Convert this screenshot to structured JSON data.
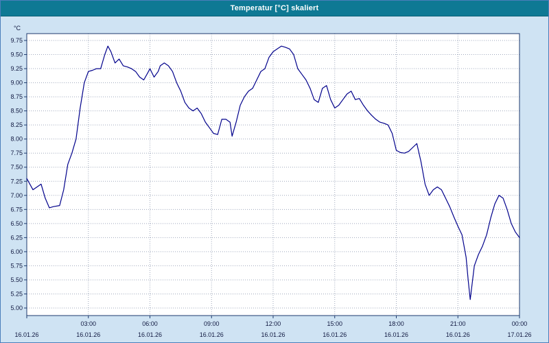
{
  "window": {
    "title": "Temperatur [°C] skaliert"
  },
  "colors": {
    "titlebar": "#0e7994",
    "frame_background": "#cfe3f3",
    "plot_background": "#ffffff",
    "plot_border": "#1d3a6e",
    "grid": "#9fa8bc",
    "line": "#00008b",
    "axis_text": "#101840"
  },
  "chart_data": {
    "type": "line",
    "title": "Temperatur [°C] skaliert",
    "ylabel": "°C",
    "xlabel": "",
    "ylim": [
      5.0,
      9.75
    ],
    "ytick_step": 0.25,
    "xlim": [
      0,
      24
    ],
    "grid": true,
    "legend": "none",
    "y_tick_labels": [
      "9.75",
      "9.50",
      "9.25",
      "9.00",
      "8.75",
      "8.50",
      "8.25",
      "8.00",
      "7.75",
      "7.50",
      "7.25",
      "7.00",
      "6.75",
      "6.50",
      "6.25",
      "6.00",
      "5.75",
      "5.50",
      "5.25",
      "5.00"
    ],
    "x_ticks": [
      {
        "hour": 0,
        "time": "",
        "date": "16.01.26"
      },
      {
        "hour": 3,
        "time": "03:00",
        "date": "16.01.26"
      },
      {
        "hour": 6,
        "time": "06:00",
        "date": "16.01.26"
      },
      {
        "hour": 9,
        "time": "09:00",
        "date": "16.01.26"
      },
      {
        "hour": 12,
        "time": "12:00",
        "date": "16.01.26"
      },
      {
        "hour": 15,
        "time": "15:00",
        "date": "16.01.26"
      },
      {
        "hour": 18,
        "time": "18:00",
        "date": "16.01.26"
      },
      {
        "hour": 21,
        "time": "21:00",
        "date": "16.01.26"
      },
      {
        "hour": 24,
        "time": "00:00",
        "date": "17.01.26"
      }
    ],
    "series": [
      {
        "name": "Temperatur",
        "color": "#00008b",
        "points": [
          [
            0,
            7.3
          ],
          [
            0.3,
            7.1
          ],
          [
            0.5,
            7.15
          ],
          [
            0.7,
            7.2
          ],
          [
            0.9,
            6.95
          ],
          [
            1.1,
            6.78
          ],
          [
            1.3,
            6.8
          ],
          [
            1.6,
            6.82
          ],
          [
            1.8,
            7.1
          ],
          [
            2.0,
            7.55
          ],
          [
            2.2,
            7.75
          ],
          [
            2.4,
            8.0
          ],
          [
            2.6,
            8.55
          ],
          [
            2.8,
            9.0
          ],
          [
            3.0,
            9.2
          ],
          [
            3.2,
            9.22
          ],
          [
            3.4,
            9.25
          ],
          [
            3.6,
            9.25
          ],
          [
            3.8,
            9.5
          ],
          [
            3.95,
            9.65
          ],
          [
            4.1,
            9.55
          ],
          [
            4.3,
            9.35
          ],
          [
            4.5,
            9.42
          ],
          [
            4.7,
            9.3
          ],
          [
            4.9,
            9.28
          ],
          [
            5.1,
            9.25
          ],
          [
            5.3,
            9.2
          ],
          [
            5.5,
            9.1
          ],
          [
            5.7,
            9.05
          ],
          [
            5.9,
            9.18
          ],
          [
            6.0,
            9.25
          ],
          [
            6.2,
            9.1
          ],
          [
            6.4,
            9.2
          ],
          [
            6.5,
            9.3
          ],
          [
            6.7,
            9.35
          ],
          [
            6.9,
            9.3
          ],
          [
            7.1,
            9.2
          ],
          [
            7.3,
            9.0
          ],
          [
            7.5,
            8.85
          ],
          [
            7.7,
            8.65
          ],
          [
            7.9,
            8.55
          ],
          [
            8.1,
            8.5
          ],
          [
            8.3,
            8.55
          ],
          [
            8.5,
            8.45
          ],
          [
            8.7,
            8.3
          ],
          [
            8.9,
            8.2
          ],
          [
            9.1,
            8.1
          ],
          [
            9.3,
            8.08
          ],
          [
            9.5,
            8.35
          ],
          [
            9.7,
            8.35
          ],
          [
            9.9,
            8.3
          ],
          [
            10.0,
            8.05
          ],
          [
            10.2,
            8.3
          ],
          [
            10.4,
            8.6
          ],
          [
            10.6,
            8.75
          ],
          [
            10.8,
            8.85
          ],
          [
            11.0,
            8.9
          ],
          [
            11.2,
            9.05
          ],
          [
            11.4,
            9.2
          ],
          [
            11.6,
            9.25
          ],
          [
            11.8,
            9.45
          ],
          [
            12.0,
            9.55
          ],
          [
            12.2,
            9.6
          ],
          [
            12.4,
            9.65
          ],
          [
            12.6,
            9.63
          ],
          [
            12.8,
            9.6
          ],
          [
            13.0,
            9.5
          ],
          [
            13.2,
            9.25
          ],
          [
            13.4,
            9.15
          ],
          [
            13.6,
            9.05
          ],
          [
            13.8,
            8.9
          ],
          [
            14.0,
            8.7
          ],
          [
            14.2,
            8.65
          ],
          [
            14.4,
            8.9
          ],
          [
            14.6,
            8.95
          ],
          [
            14.8,
            8.7
          ],
          [
            15.0,
            8.55
          ],
          [
            15.2,
            8.6
          ],
          [
            15.4,
            8.7
          ],
          [
            15.6,
            8.8
          ],
          [
            15.8,
            8.85
          ],
          [
            16.0,
            8.7
          ],
          [
            16.2,
            8.72
          ],
          [
            16.4,
            8.6
          ],
          [
            16.6,
            8.5
          ],
          [
            16.8,
            8.42
          ],
          [
            17.0,
            8.35
          ],
          [
            17.2,
            8.3
          ],
          [
            17.4,
            8.28
          ],
          [
            17.6,
            8.25
          ],
          [
            17.8,
            8.1
          ],
          [
            18.0,
            7.8
          ],
          [
            18.2,
            7.76
          ],
          [
            18.4,
            7.75
          ],
          [
            18.6,
            7.78
          ],
          [
            18.8,
            7.85
          ],
          [
            19.0,
            7.92
          ],
          [
            19.2,
            7.6
          ],
          [
            19.4,
            7.2
          ],
          [
            19.6,
            7.0
          ],
          [
            19.8,
            7.1
          ],
          [
            20.0,
            7.15
          ],
          [
            20.2,
            7.1
          ],
          [
            20.4,
            6.95
          ],
          [
            20.6,
            6.8
          ],
          [
            20.8,
            6.62
          ],
          [
            21.0,
            6.45
          ],
          [
            21.2,
            6.3
          ],
          [
            21.4,
            5.9
          ],
          [
            21.5,
            5.5
          ],
          [
            21.6,
            5.15
          ],
          [
            21.8,
            5.75
          ],
          [
            22.0,
            5.95
          ],
          [
            22.2,
            6.1
          ],
          [
            22.4,
            6.3
          ],
          [
            22.6,
            6.6
          ],
          [
            22.8,
            6.85
          ],
          [
            23.0,
            7.0
          ],
          [
            23.2,
            6.95
          ],
          [
            23.4,
            6.75
          ],
          [
            23.6,
            6.5
          ],
          [
            23.8,
            6.35
          ],
          [
            24.0,
            6.25
          ]
        ]
      }
    ]
  }
}
